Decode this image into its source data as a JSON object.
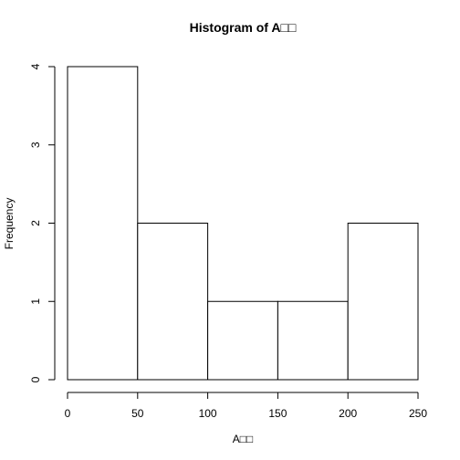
{
  "chart_data": {
    "type": "bar",
    "title": "Histogram of A□□",
    "xlabel": "A□□",
    "ylabel": "Frequency",
    "bins": [
      [
        0,
        50
      ],
      [
        50,
        100
      ],
      [
        100,
        150
      ],
      [
        150,
        200
      ],
      [
        200,
        250
      ]
    ],
    "values": [
      4,
      2,
      1,
      1,
      2
    ],
    "xlim": [
      0,
      250
    ],
    "ylim": [
      0,
      4
    ],
    "xticks": [
      0,
      50,
      100,
      150,
      200,
      250
    ],
    "yticks": [
      0,
      1,
      2,
      3,
      4
    ],
    "grid": false,
    "colors": {
      "bar_fill": "#ffffff",
      "bar_stroke": "#000000"
    }
  }
}
